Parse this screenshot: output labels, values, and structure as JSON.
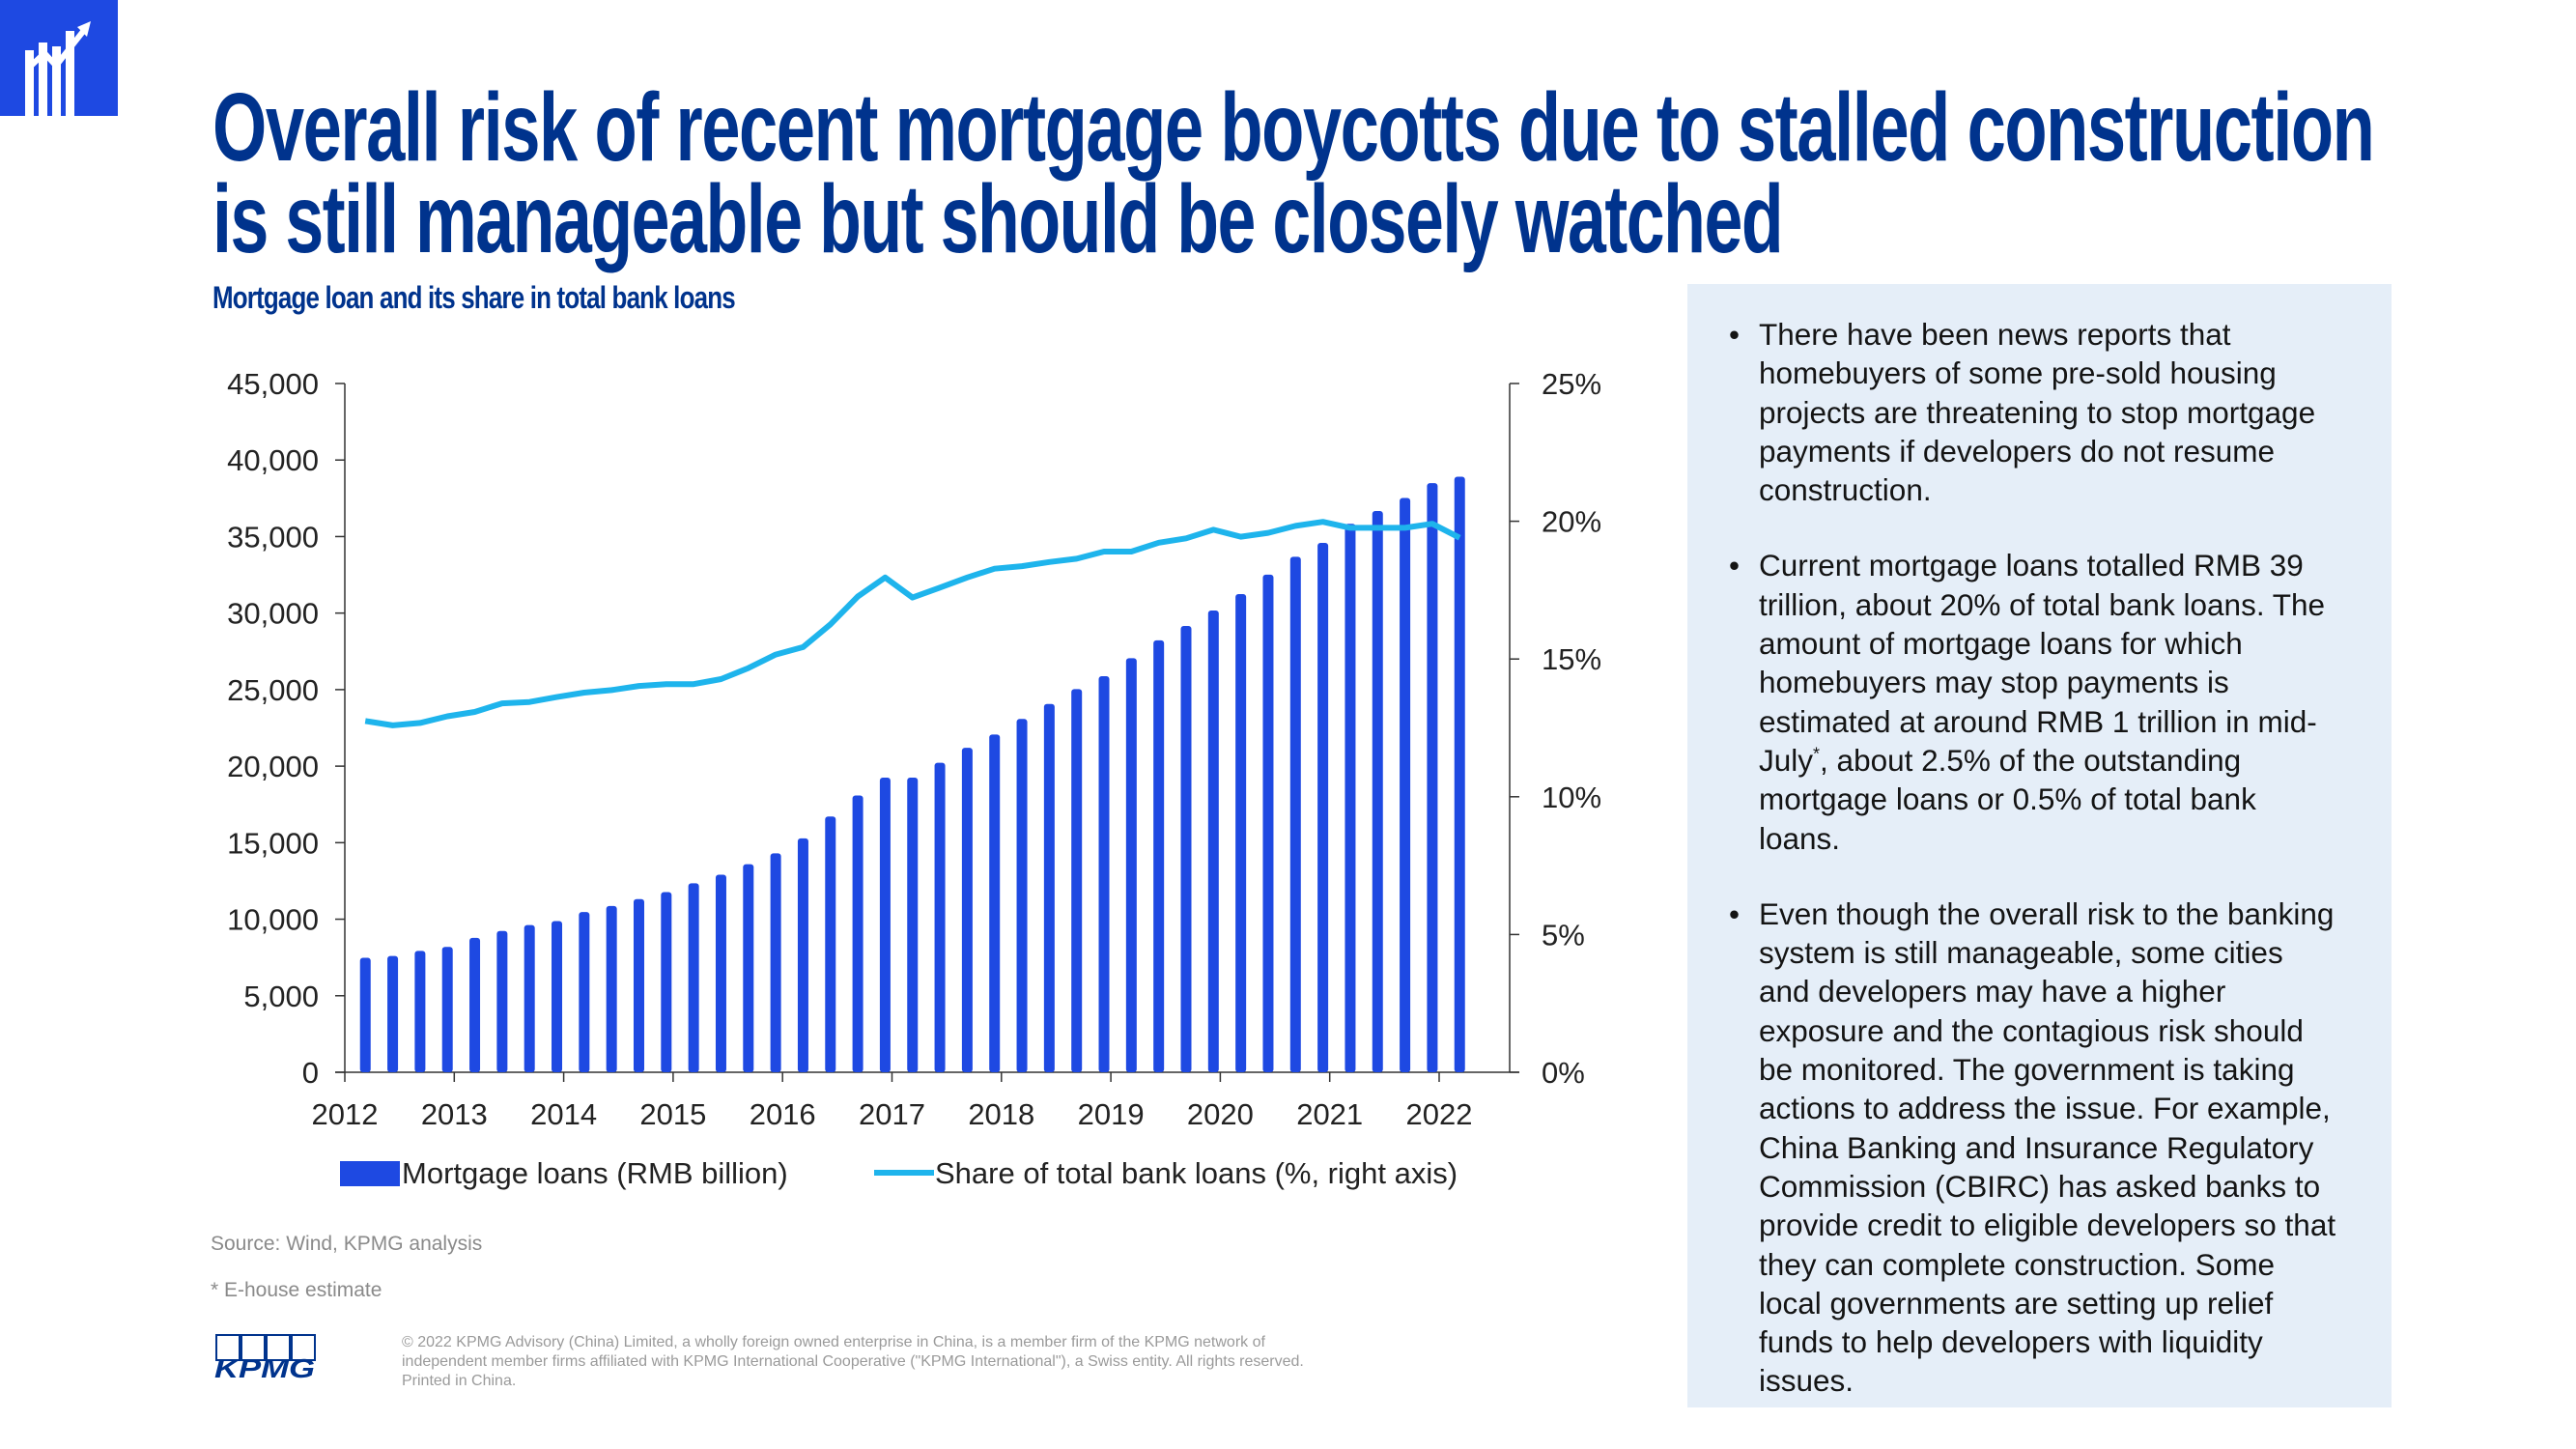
{
  "header": {
    "icon": "bar-chart-growth-icon",
    "title_line1": "Overall risk of recent mortgage boycotts due to stalled construction",
    "title_line2": "is still manageable but should be closely watched",
    "subtitle": "Mortgage loan and its share in total bank loans"
  },
  "colors": {
    "brand_blue": "#00338D",
    "bar": "#1E49E2",
    "line": "#1EB4EC",
    "panel_bg": "#E5EEF8"
  },
  "chart_data": {
    "type": "bar+line",
    "x_tick_labels": [
      "2012",
      "2013",
      "2014",
      "2015",
      "2016",
      "2017",
      "2018",
      "2019",
      "2020",
      "2021",
      "2022"
    ],
    "x": [
      "2012Q1",
      "2012Q2",
      "2012Q3",
      "2012Q4",
      "2013Q1",
      "2013Q2",
      "2013Q3",
      "2013Q4",
      "2014Q1",
      "2014Q2",
      "2014Q3",
      "2014Q4",
      "2015Q1",
      "2015Q2",
      "2015Q3",
      "2015Q4",
      "2016Q1",
      "2016Q2",
      "2016Q3",
      "2016Q4",
      "2017Q1",
      "2017Q2",
      "2017Q3",
      "2017Q4",
      "2018Q1",
      "2018Q2",
      "2018Q3",
      "2018Q4",
      "2019Q1",
      "2019Q2",
      "2019Q3",
      "2019Q4",
      "2020Q1",
      "2020Q2",
      "2020Q3",
      "2020Q4",
      "2021Q1",
      "2021Q2",
      "2021Q3",
      "2021Q4",
      "2022Q1"
    ],
    "series": [
      {
        "name": "Mortgage loans (RMB billion)",
        "type": "bar",
        "axis": "left",
        "values": [
          7480,
          7600,
          7930,
          8190,
          8780,
          9230,
          9620,
          9880,
          10470,
          10860,
          11310,
          11770,
          12350,
          12910,
          13590,
          14300,
          15280,
          16710,
          18080,
          19250,
          19250,
          20220,
          21200,
          22070,
          23080,
          24060,
          25030,
          25880,
          27050,
          28220,
          29160,
          30170,
          31240,
          32510,
          33680,
          34590,
          35830,
          36670,
          37520,
          38490,
          38910
        ]
      },
      {
        "name": "Share of total bank loans (%, right axis)",
        "type": "line",
        "axis": "right",
        "values": [
          12.75,
          12.59,
          12.68,
          12.92,
          13.08,
          13.39,
          13.44,
          13.62,
          13.78,
          13.87,
          14.02,
          14.09,
          14.09,
          14.27,
          14.67,
          15.16,
          15.43,
          16.26,
          17.27,
          17.96,
          17.23,
          17.59,
          17.96,
          18.28,
          18.37,
          18.52,
          18.64,
          18.9,
          18.9,
          19.22,
          19.38,
          19.69,
          19.44,
          19.58,
          19.83,
          19.98,
          19.76,
          19.76,
          19.76,
          19.91,
          19.4
        ]
      }
    ],
    "y_left": {
      "range": [
        0,
        45000
      ],
      "tick_labels": [
        "0",
        "5,000",
        "10,000",
        "15,000",
        "20,000",
        "25,000",
        "30,000",
        "35,000",
        "40,000",
        "45,000"
      ]
    },
    "y_right": {
      "range": [
        0,
        25
      ],
      "tick_labels": [
        "0%",
        "5%",
        "10%",
        "15%",
        "20%",
        "25%"
      ]
    },
    "grid": false,
    "legend_position": "bottom"
  },
  "notes": {
    "source": "Source: Wind, KPMG analysis",
    "footnote": "* E-house estimate"
  },
  "footer": {
    "logo": "KPMG",
    "copyright_line1": "© 2022 KPMG Advisory (China) Limited, a wholly foreign owned enterprise in China, is a member firm of the KPMG network of",
    "copyright_line2": "independent member firms affiliated with KPMG International Cooperative (\"KPMG International\"), a Swiss entity.  All rights reserved.",
    "copyright_line3": "Printed in China."
  },
  "panel": {
    "bullet1": "There have been news reports that homebuyers of some pre-sold housing projects are threatening to stop mortgage payments if developers do not resume construction.",
    "bullet2_a": "Current mortgage loans totalled RMB 39 trillion, about 20% of total bank loans. The amount of mortgage loans for which homebuyers may stop payments is estimated at around RMB 1 trillion in mid-July",
    "bullet2_sup": "*",
    "bullet2_b": ", about 2.5% of the outstanding mortgage loans or 0.5% of total bank loans.",
    "bullet3": "Even though the overall risk to the banking system is still manageable, some cities and developers may have a higher exposure and the contagious risk should be monitored. The government is taking actions to address the issue. For example, China Banking and Insurance Regulatory Commission (CBIRC) has asked banks to provide credit to eligible developers so that they can complete construction. Some local governments are setting up relief funds to help developers with liquidity issues."
  }
}
